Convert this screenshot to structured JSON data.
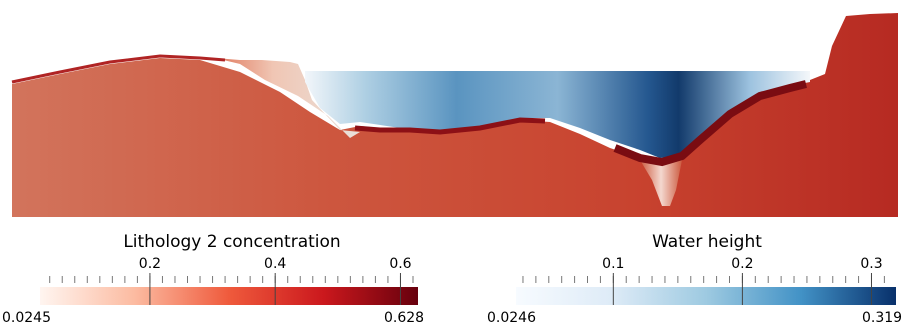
{
  "legends": [
    {
      "title": "Lithology 2 concentration",
      "min_label": "0.0245",
      "max_label": "0.628",
      "range": [
        0.0245,
        0.628
      ],
      "ticks": [
        "0.2",
        "0.4",
        "0.6"
      ],
      "tick_values": [
        0.2,
        0.4,
        0.6
      ],
      "colormap": [
        "#fff5f0",
        "#fcbba1",
        "#ef5a3c",
        "#cb181d",
        "#67000d"
      ]
    },
    {
      "title": "Water height",
      "min_label": "0.0246",
      "max_label": "0.319",
      "range": [
        0.0246,
        0.319
      ],
      "ticks": [
        "0.1",
        "0.2",
        "0.3"
      ],
      "tick_values": [
        0.1,
        0.2,
        0.3
      ],
      "colormap": [
        "#f7fbff",
        "#deebf7",
        "#9ecae1",
        "#4292c6",
        "#08306b"
      ]
    }
  ]
}
